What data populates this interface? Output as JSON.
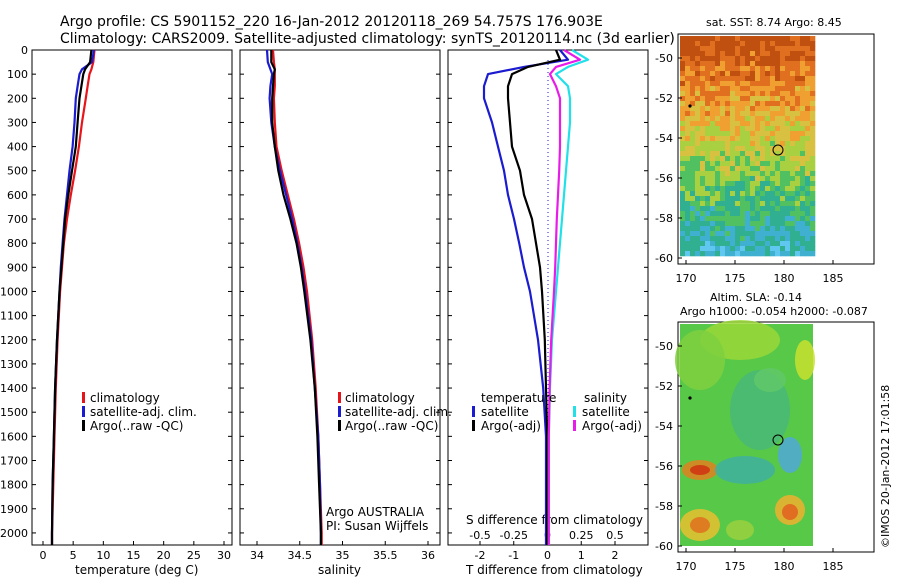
{
  "header": {
    "line1": "Argo profile: CS 5901152_220 16-Jan-2012 20120118_269 54.757S 176.903E",
    "line2": "Climatology: CARS2009. Satellite-adjusted climatology: synTS_20120114.nc (3d earlier)"
  },
  "depth_ticks": [
    0,
    100,
    200,
    300,
    400,
    500,
    600,
    700,
    800,
    900,
    1000,
    1100,
    1200,
    1300,
    1400,
    1500,
    1600,
    1700,
    1800,
    1900,
    2000
  ],
  "panel_temperature": {
    "xlabel": "temperature (deg C)",
    "xticks": [
      0,
      5,
      10,
      15,
      20,
      25,
      30
    ],
    "legend": [
      "climatology",
      "satellite-adj. clim.",
      "Argo(..raw -QC)"
    ]
  },
  "panel_salinity": {
    "xlabel": "salinity",
    "xticks": [
      "34",
      "34.5",
      "35",
      "35.5",
      "36"
    ],
    "legend": [
      "climatology",
      "satellite-adj. clim.",
      "Argo(..raw -QC)"
    ],
    "note1": "Argo AUSTRALIA",
    "note2": "PI: Susan Wijffels"
  },
  "panel_difference": {
    "xlabel": "T difference from climatology",
    "xticks": [
      "-2",
      "-1",
      "0",
      "1",
      "2"
    ],
    "top_label": "S difference from climatology",
    "top_ticks": [
      "-0.5",
      "-0.25",
      "0",
      "0.25",
      "0.5"
    ],
    "legend_t_title": "temperature",
    "legend_t": [
      "satellite",
      "Argo(-adj)"
    ],
    "legend_s_title": "salinity",
    "legend_s": [
      "satellite",
      "Argo(-adj)"
    ]
  },
  "map_sst": {
    "title": "sat. SST: 8.74  Argo: 8.45",
    "yticks": [
      "-50",
      "-52",
      "-54",
      "-56",
      "-58",
      "-60"
    ],
    "xticks": [
      "170",
      "175",
      "180",
      "185"
    ]
  },
  "map_sla": {
    "title1": "Altim. SLA: -0.14",
    "title2": "Argo h1000: -0.054 h2000: -0.087",
    "yticks": [
      "-50",
      "-52",
      "-54",
      "-56",
      "-58",
      "-60"
    ],
    "xticks": [
      "170",
      "175",
      "180",
      "185"
    ]
  },
  "footer_stamp": "©IMOS 20-Jan-2012 17:01:58",
  "colors": {
    "climatology": "#e8141c",
    "satellite": "#1b1bd0",
    "argo": "#000000",
    "sal_satellite": "#22e0e8",
    "sal_argo": "#e81ce8"
  },
  "chart_data": [
    {
      "type": "line",
      "title": "",
      "xlabel": "temperature (deg C)",
      "ylabel": "",
      "xlim": [
        -1,
        31
      ],
      "ylim": [
        2050,
        0
      ],
      "y": [
        0,
        50,
        80,
        100,
        150,
        200,
        300,
        400,
        500,
        600,
        700,
        800,
        900,
        1000,
        1200,
        1400,
        1600,
        1800,
        2000,
        2050
      ],
      "series": [
        {
          "name": "climatology",
          "x": [
            9.0,
            8.8,
            8.5,
            8.2,
            7.9,
            7.6,
            7.0,
            6.5,
            5.9,
            5.2,
            4.6,
            4.1,
            3.8,
            3.5,
            3.1,
            2.8,
            2.6,
            2.4,
            2.2,
            2.2
          ]
        },
        {
          "name": "satellite-adj. clim.",
          "x": [
            8.9,
            8.6,
            7.0,
            6.6,
            6.3,
            6.0,
            5.8,
            5.5,
            5.0,
            4.6,
            4.2,
            3.9,
            3.6,
            3.4,
            3.0,
            2.7,
            2.5,
            2.3,
            2.2,
            2.2
          ]
        },
        {
          "name": "Argo(..raw -QC)",
          "x": [
            8.5,
            8.3,
            7.5,
            7.2,
            6.9,
            6.6,
            6.3,
            6.0,
            5.4,
            4.8,
            4.3,
            4.0,
            3.7,
            3.4,
            3.0,
            2.7,
            2.5,
            2.3,
            2.2,
            2.2
          ]
        }
      ]
    },
    {
      "type": "line",
      "title": "",
      "xlabel": "salinity",
      "ylabel": "",
      "xlim": [
        33.8,
        36.1
      ],
      "ylim": [
        2050,
        0
      ],
      "y": [
        0,
        50,
        80,
        100,
        150,
        200,
        300,
        400,
        500,
        600,
        700,
        800,
        900,
        1000,
        1200,
        1400,
        1600,
        1800,
        2000,
        2050
      ],
      "series": [
        {
          "name": "climatology",
          "x": [
            34.18,
            34.19,
            34.2,
            34.2,
            34.2,
            34.19,
            34.2,
            34.22,
            34.28,
            34.35,
            34.42,
            34.48,
            34.53,
            34.57,
            34.63,
            34.67,
            34.7,
            34.72,
            34.74,
            34.74
          ]
        },
        {
          "name": "satellite-adj. clim.",
          "x": [
            34.11,
            34.12,
            34.15,
            34.17,
            34.15,
            34.14,
            34.16,
            34.2,
            34.26,
            34.33,
            34.4,
            34.46,
            34.51,
            34.55,
            34.62,
            34.66,
            34.7,
            34.72,
            34.73,
            34.73
          ]
        },
        {
          "name": "Argo(..raw -QC)",
          "x": [
            34.16,
            34.16,
            34.2,
            34.19,
            34.18,
            34.17,
            34.17,
            34.2,
            34.24,
            34.3,
            34.38,
            34.45,
            34.5,
            34.54,
            34.61,
            34.66,
            34.69,
            34.71,
            34.73,
            34.73
          ]
        }
      ]
    },
    {
      "type": "line",
      "title": "",
      "xlabel": "T difference from climatology",
      "ylabel": "",
      "xlim": [
        -2.5,
        2.5
      ],
      "ylim": [
        2050,
        0
      ],
      "y": [
        0,
        40,
        70,
        100,
        150,
        200,
        300,
        400,
        500,
        600,
        700,
        800,
        900,
        1000,
        1200,
        1400,
        1600,
        1800,
        2000,
        2050
      ],
      "series": [
        {
          "name": "temperature satellite",
          "x": [
            0.3,
            0.5,
            -0.6,
            -1.5,
            -1.6,
            -1.6,
            -1.4,
            -1.25,
            -1.1,
            -1.0,
            -0.85,
            -0.72,
            -0.6,
            -0.45,
            -0.25,
            -0.12,
            -0.05,
            -0.05,
            -0.05,
            -0.05
          ]
        },
        {
          "name": "temperature Argo(-adj)",
          "x": [
            0.2,
            0.3,
            -0.5,
            -0.9,
            -1.0,
            -1.0,
            -0.95,
            -0.9,
            -0.7,
            -0.6,
            -0.4,
            -0.3,
            -0.2,
            -0.15,
            -0.08,
            -0.05,
            -0.02,
            -0.02,
            -0.02,
            -0.02
          ]
        },
        {
          "name": "salinity satellite",
          "x": [
            0.6,
            1.0,
            0.5,
            0.2,
            0.5,
            0.55,
            0.55,
            0.5,
            0.45,
            0.4,
            0.35,
            0.3,
            0.25,
            0.2,
            0.1,
            0.05,
            0.02,
            0.02,
            0.02,
            0.02
          ]
        },
        {
          "name": "salinity Argo(-adj)",
          "x": [
            0.4,
            0.8,
            0.2,
            0.05,
            0.2,
            0.3,
            0.3,
            0.3,
            0.28,
            0.25,
            0.22,
            0.2,
            0.18,
            0.15,
            0.08,
            0.04,
            0.02,
            0.02,
            0.02,
            0.02
          ]
        }
      ]
    }
  ]
}
